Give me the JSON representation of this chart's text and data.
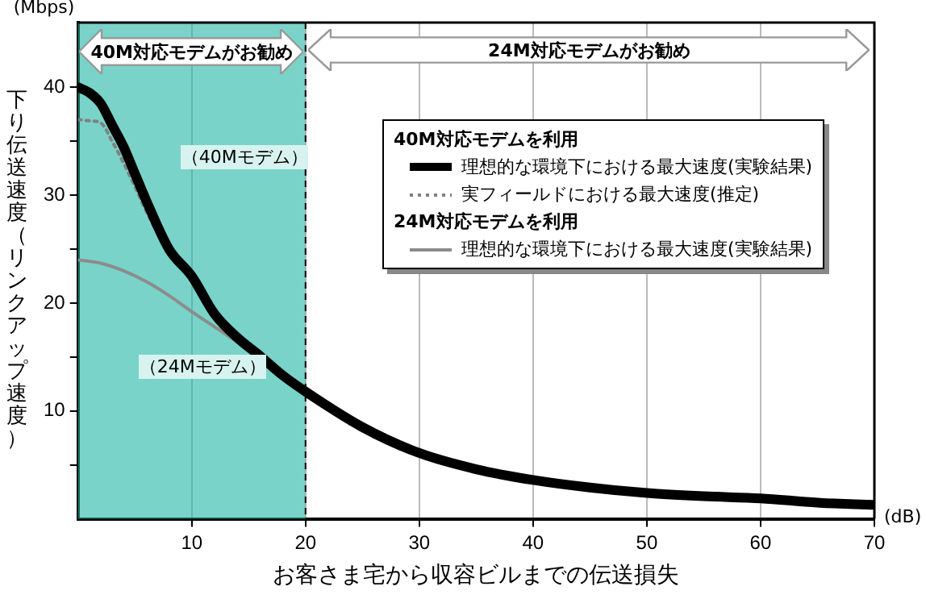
{
  "chart_data": {
    "type": "line",
    "xlabel": "お客さま宅から収容ビルまでの伝送損失",
    "ylabel": "下り伝送速度（リンクアップ速度）",
    "xlim": [
      0,
      70
    ],
    "xticks": [
      10,
      20,
      30,
      40,
      50,
      60,
      70
    ],
    "ylim": [
      0,
      46
    ],
    "yticks": [
      {
        "value": 5,
        "label": null
      },
      10,
      {
        "value": 15,
        "label": null
      },
      20,
      {
        "value": 25,
        "label": null
      },
      30,
      {
        "value": 35,
        "label": null
      },
      40
    ],
    "grid": "x",
    "legend": "right",
    "line_style": "solid",
    "series": [
      {
        "name": "理想的な環境下における最大速度(実験結果)",
        "type": "line",
        "color": "#000000",
        "x": [
          0,
          1,
          2,
          3,
          4,
          5,
          6,
          8,
          10,
          12,
          14,
          16,
          18,
          20,
          25,
          30,
          35,
          40,
          45,
          50,
          55,
          60,
          65,
          70
        ],
        "values": [
          40,
          39.5,
          38.5,
          36.5,
          34.5,
          32,
          29.5,
          25,
          22.5,
          19,
          16.8,
          15.1,
          13.3,
          11.8,
          8.5,
          6.1,
          4.6,
          3.6,
          2.9,
          2.4,
          2.1,
          1.9,
          1.5,
          1.3
        ]
      },
      {
        "name": "実フィールドにおける最大速度(推定)",
        "type": "line",
        "line_style": "dotted",
        "color": "#808080",
        "x": [
          0,
          1,
          2,
          3,
          4,
          5,
          6,
          8
        ],
        "values": [
          37,
          36.9,
          36.7,
          35,
          33,
          30.8,
          28.5,
          24.5
        ]
      },
      {
        "name": "理想的な環境下における最大速度(実験結果)",
        "type": "line",
        "color": "#8c8c8c",
        "x": [
          0,
          2,
          4,
          6,
          8,
          10,
          12,
          14,
          16
        ],
        "values": [
          24,
          23.7,
          23,
          22,
          20.7,
          19.2,
          17.8,
          16.4,
          15.1
        ]
      }
    ],
    "bands": [
      {
        "axis": "x",
        "from": 0,
        "to": 20,
        "label": "40M対応モデムがお勧め",
        "color": "#1fb5a3"
      }
    ],
    "ref_lines": [
      {
        "axis": "x",
        "value": 20,
        "color": "#000000",
        "line_style": "dashed"
      }
    ],
    "annotations": [
      "(Mbps)",
      "(dB)",
      "24M対応モデムがお勧め",
      "40M対応モデムを利用",
      "24M対応モデムを利用",
      "（40Mモデム）",
      "（24Mモデム）"
    ]
  }
}
